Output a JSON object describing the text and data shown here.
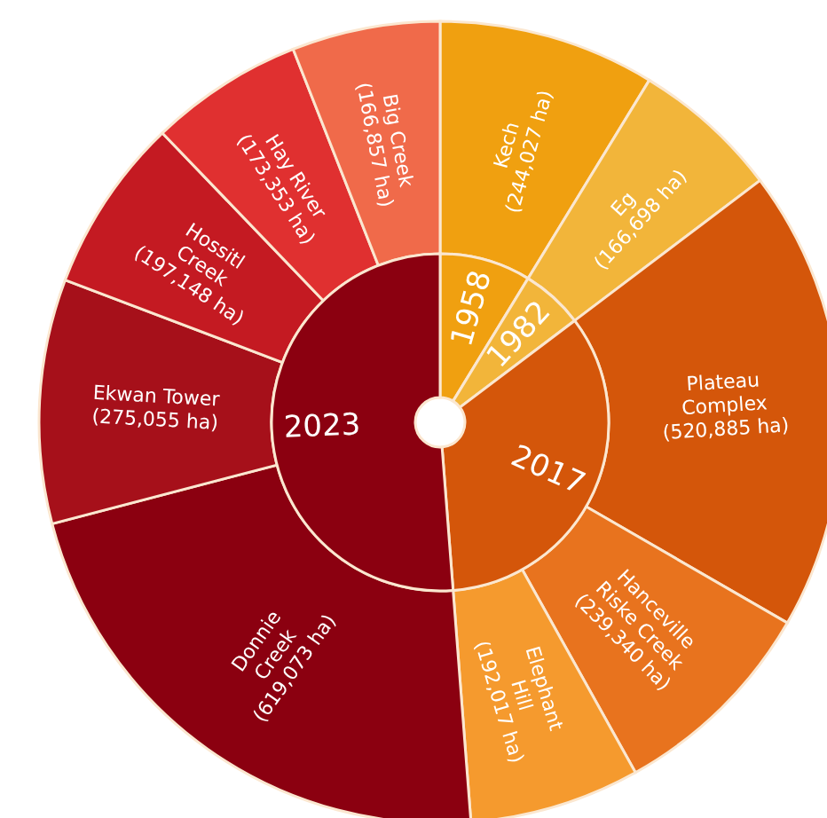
{
  "chart_data": [
    {
      "type": "donut",
      "categories": [
        "1958",
        "1982",
        "2017",
        "2023"
      ],
      "values": [
        8.73,
        5.97,
        34.07,
        51.23
      ],
      "colors": [
        "#f0a010",
        "#f2b53a",
        "#d4560a",
        "#8b0010"
      ]
    },
    {
      "type": "donut",
      "categories": [
        "Kech",
        "Eg",
        "Plateau Complex",
        "Hanceville Riske Creek",
        "Elephant Hill",
        "Donnie Creek",
        "Ekwan Tower",
        "Hossitl Creek",
        "Hay River",
        "Big Creek"
      ],
      "values": [
        244027,
        166698,
        520885,
        239340,
        192017,
        619073,
        275055,
        197148,
        173353,
        166857
      ],
      "colors": [
        "#f0a010",
        "#f2b53a",
        "#d4560a",
        "#e8731e",
        "#f59a2e",
        "#8b0010",
        "#a6101a",
        "#c41a22",
        "#e03030",
        "#f06a4a"
      ],
      "value_labels": [
        "(244,027 ha)",
        "(166,698 ha)",
        "(520,885 ha)",
        "(239,340 ha)",
        "(192,017 ha)",
        "(619,073 ha)",
        "(275,055 ha)",
        "(197,148 ha)",
        "(173,353 ha)",
        "(166,857 ha)"
      ]
    }
  ]
}
